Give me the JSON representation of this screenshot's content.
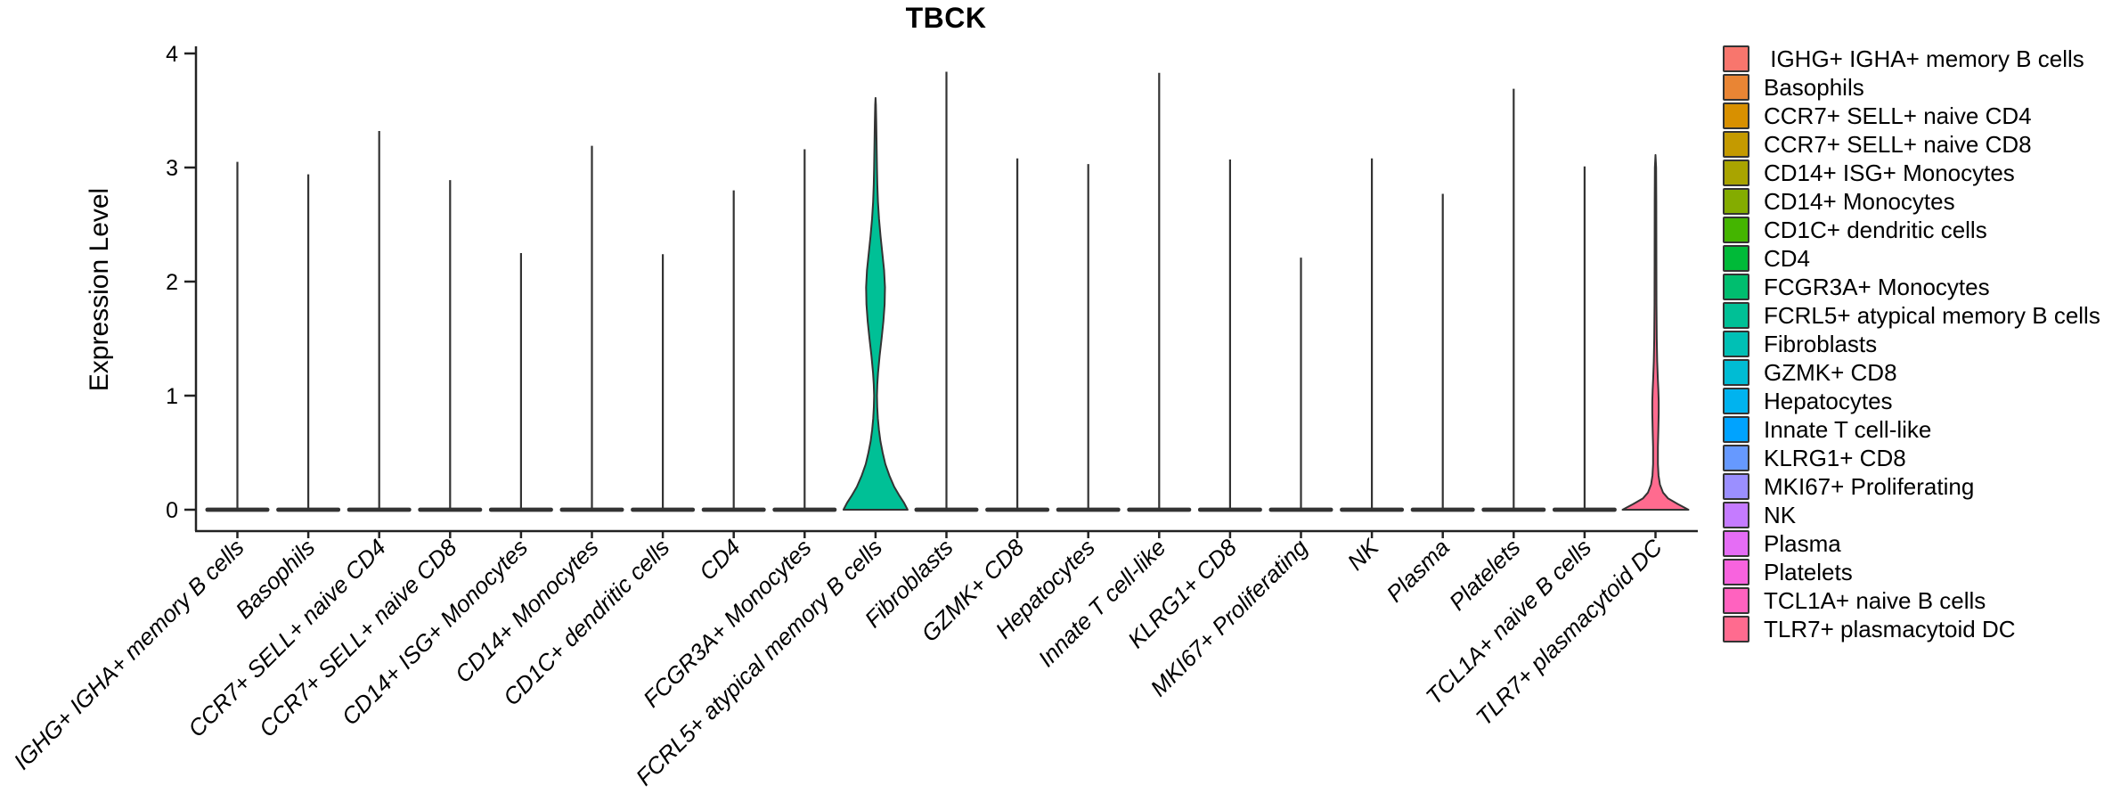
{
  "title": "TBCK",
  "y_axis": {
    "label": "Expression Level",
    "ticks": [
      0,
      1,
      2,
      3,
      4
    ]
  },
  "chart_data": {
    "type": "violin",
    "title": "TBCK",
    "xlabel": "",
    "ylabel": "Expression Level",
    "ylim": [
      0,
      4
    ],
    "grid": false,
    "legend_position": "right",
    "categories": [
      "IGHG+ IGHA+ memory B cells",
      "Basophils",
      "CCR7+ SELL+ naive CD4",
      "CCR7+ SELL+ naive CD8",
      "CD14+ ISG+ Monocytes",
      "CD14+ Monocytes",
      "CD1C+ dendritic cells",
      "CD4",
      "FCGR3A+ Monocytes",
      "FCRL5+ atypical memory B cells",
      "Fibroblasts",
      "GZMK+ CD8",
      "Hepatocytes",
      "Innate T cell-like",
      "KLRG1+ CD8",
      "MKI67+ Proliferating",
      "NK",
      "Plasma",
      "Platelets",
      "TCL1A+ naive B cells",
      "TLR7+ plasmacytoid DC"
    ],
    "series": [
      {
        "name": "max_expression_level",
        "values": [
          3.05,
          2.94,
          3.32,
          2.89,
          2.25,
          3.19,
          2.24,
          2.8,
          3.16,
          3.61,
          3.84,
          3.08,
          3.03,
          3.83,
          3.07,
          2.21,
          3.08,
          2.77,
          3.69,
          3.01,
          3.11
        ]
      },
      {
        "name": "density_mode",
        "values": [
          0,
          0,
          0,
          0,
          0,
          0,
          0,
          0,
          0,
          0,
          0,
          0,
          0,
          0,
          0,
          0,
          0,
          0,
          0,
          0,
          0
        ]
      }
    ],
    "colors": [
      "#F8766D",
      "#E98534",
      "#D89000",
      "#C49A00",
      "#A9A400",
      "#84AC00",
      "#44B500",
      "#00BA38",
      "#00BE6F",
      "#00C096",
      "#00C0B5",
      "#00BCD4",
      "#00B3EF",
      "#00A3FF",
      "#6699FF",
      "#9B8FFF",
      "#C57BFF",
      "#E56DF5",
      "#F863DE",
      "#FF62BF",
      "#FF6B8F"
    ],
    "violin_profiles": {
      "FCRL5+ atypical memory B cells": [
        [
          0,
          36
        ],
        [
          0.06,
          32
        ],
        [
          0.12,
          27
        ],
        [
          0.2,
          21
        ],
        [
          0.3,
          15.5
        ],
        [
          0.4,
          11
        ],
        [
          0.5,
          8
        ],
        [
          0.6,
          5.5
        ],
        [
          0.7,
          3.8
        ],
        [
          0.8,
          2.6
        ],
        [
          0.9,
          1.9
        ],
        [
          1.0,
          1.6
        ],
        [
          1.1,
          2.0
        ],
        [
          1.2,
          2.8
        ],
        [
          1.35,
          4.6
        ],
        [
          1.5,
          6.8
        ],
        [
          1.65,
          8.8
        ],
        [
          1.8,
          10.2
        ],
        [
          1.95,
          10.6
        ],
        [
          2.1,
          9.6
        ],
        [
          2.25,
          7.6
        ],
        [
          2.4,
          5.6
        ],
        [
          2.55,
          3.9
        ],
        [
          2.7,
          2.7
        ],
        [
          2.85,
          2.0
        ],
        [
          3.0,
          1.6
        ],
        [
          3.2,
          1.2
        ],
        [
          3.4,
          0.8
        ],
        [
          3.55,
          0.4
        ],
        [
          3.61,
          0
        ]
      ],
      "TLR7+ plasmacytoid DC": [
        [
          0,
          37
        ],
        [
          0.05,
          25
        ],
        [
          0.1,
          14
        ],
        [
          0.15,
          8.5
        ],
        [
          0.22,
          5
        ],
        [
          0.3,
          3.4
        ],
        [
          0.4,
          2.7
        ],
        [
          0.55,
          2.7
        ],
        [
          0.7,
          3.2
        ],
        [
          0.85,
          3.6
        ],
        [
          0.95,
          3.6
        ],
        [
          1.05,
          3.2
        ],
        [
          1.15,
          2.6
        ],
        [
          1.3,
          1.9
        ],
        [
          1.5,
          1.4
        ],
        [
          1.8,
          1.1
        ],
        [
          2.2,
          1.0
        ],
        [
          2.7,
          0.9
        ],
        [
          3.0,
          0.7
        ],
        [
          3.11,
          0
        ]
      ]
    }
  },
  "legend": {
    "items": [
      {
        "label": " IGHG+ IGHA+ memory B cells",
        "color": "#F8766D"
      },
      {
        "label": "Basophils",
        "color": "#E98534"
      },
      {
        "label": "CCR7+ SELL+ naive CD4",
        "color": "#D89000"
      },
      {
        "label": "CCR7+ SELL+ naive CD8",
        "color": "#C49A00"
      },
      {
        "label": "CD14+ ISG+ Monocytes",
        "color": "#A9A400"
      },
      {
        "label": "CD14+ Monocytes",
        "color": "#84AC00"
      },
      {
        "label": "CD1C+ dendritic cells",
        "color": "#44B500"
      },
      {
        "label": "CD4",
        "color": "#00BA38"
      },
      {
        "label": "FCGR3A+ Monocytes",
        "color": "#00BE6F"
      },
      {
        "label": "FCRL5+ atypical memory B cells",
        "color": "#00C096"
      },
      {
        "label": "Fibroblasts",
        "color": "#00C0B5"
      },
      {
        "label": "GZMK+ CD8",
        "color": "#00BCD4"
      },
      {
        "label": "Hepatocytes",
        "color": "#00B3EF"
      },
      {
        "label": "Innate T cell-like",
        "color": "#00A3FF"
      },
      {
        "label": "KLRG1+ CD8",
        "color": "#6699FF"
      },
      {
        "label": "MKI67+ Proliferating",
        "color": "#9B8FFF"
      },
      {
        "label": "NK",
        "color": "#C57BFF"
      },
      {
        "label": "Plasma",
        "color": "#E56DF5"
      },
      {
        "label": "Platelets",
        "color": "#F863DE"
      },
      {
        "label": "TCL1A+ naive B cells",
        "color": "#FF62BF"
      },
      {
        "label": "TLR7+ plasmacytoid DC",
        "color": "#FF6B8F"
      }
    ]
  },
  "style": {
    "axis_color": "#222222",
    "violin_stroke": "#333333",
    "text_color": "#000000",
    "background": "#ffffff"
  }
}
